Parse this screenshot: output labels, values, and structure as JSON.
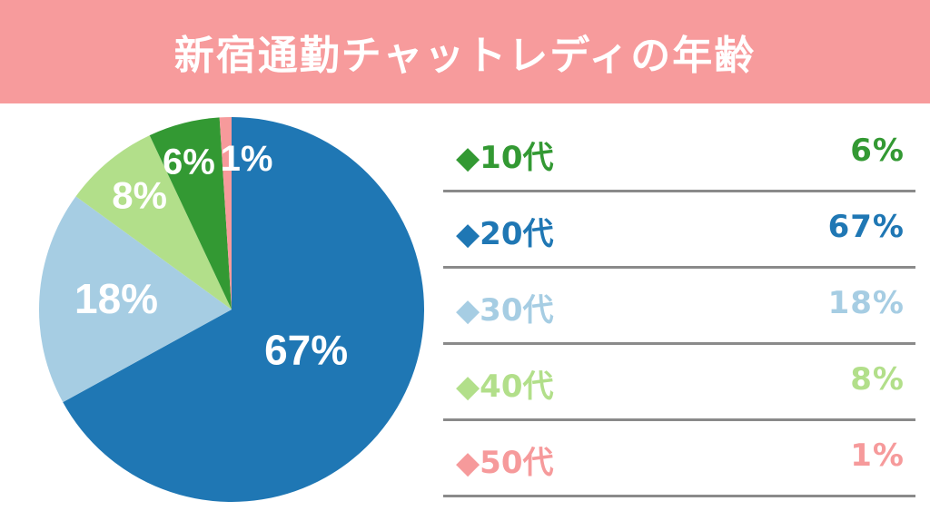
{
  "header": {
    "title": "新宿通勤チャットレディの年齢"
  },
  "chart_data": {
    "type": "pie",
    "title": "新宿通勤チャットレディの年齢",
    "categories": [
      "10代",
      "20代",
      "30代",
      "40代",
      "50代"
    ],
    "values": [
      6,
      67,
      18,
      8,
      1
    ],
    "labels": [
      "6%",
      "67%",
      "18%",
      "8%",
      "1%"
    ],
    "colors": [
      "#339933",
      "#1f77b4",
      "#a6cde3",
      "#b2df8a",
      "#f69a9b"
    ],
    "legend": "right"
  },
  "legend_rows": [
    {
      "marker": "◆",
      "label": "10代",
      "percent": "6%",
      "color": "#339933"
    },
    {
      "marker": "◆",
      "label": "20代",
      "percent": "67%",
      "color": "#1f77b4"
    },
    {
      "marker": "◆",
      "label": "30代",
      "percent": "18%",
      "color": "#a6cde3"
    },
    {
      "marker": "◆",
      "label": "40代",
      "percent": "8%",
      "color": "#b2df8a"
    },
    {
      "marker": "◆",
      "label": "50代",
      "percent": "1%",
      "color": "#f69a9b"
    }
  ]
}
